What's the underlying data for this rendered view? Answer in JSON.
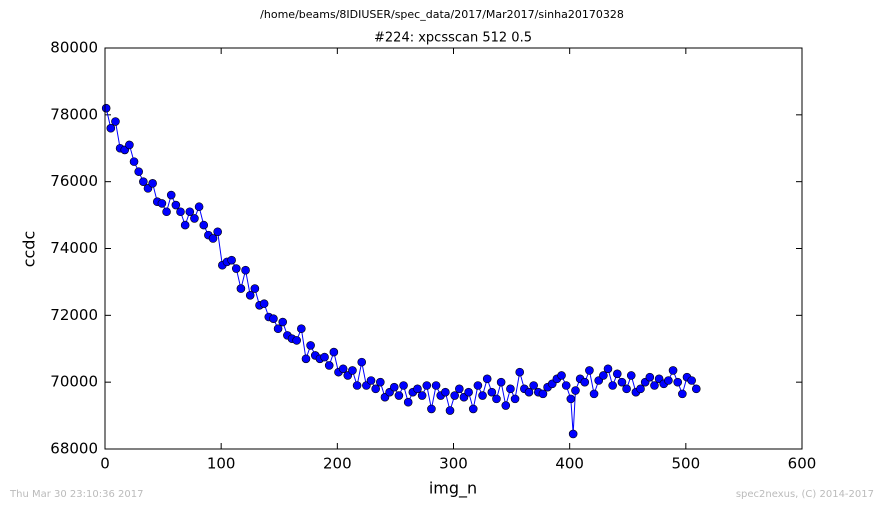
{
  "chart_data": {
    "type": "line",
    "suptitle": "/home/beams/8IDIUSER/spec_data/2017/Mar2017/sinha20170328",
    "title": "#224: xpcsscan 512 0.5",
    "xlabel": "img_n",
    "ylabel": "ccdc",
    "footer_left": "Thu Mar 30 23:10:36 2017",
    "footer_right": "spec2nexus, (C) 2014-2017",
    "x": [
      1,
      5,
      9,
      13,
      17,
      21,
      25,
      29,
      33,
      37,
      41,
      45,
      49,
      53,
      57,
      61,
      65,
      69,
      73,
      77,
      81,
      85,
      89,
      93,
      97,
      101,
      105,
      109,
      113,
      117,
      121,
      125,
      129,
      133,
      137,
      141,
      145,
      149,
      153,
      157,
      161,
      165,
      169,
      173,
      177,
      181,
      185,
      189,
      193,
      197,
      201,
      205,
      209,
      213,
      217,
      221,
      225,
      229,
      233,
      237,
      241,
      245,
      249,
      253,
      257,
      261,
      265,
      269,
      273,
      277,
      281,
      285,
      289,
      293,
      297,
      301,
      305,
      309,
      313,
      317,
      321,
      325,
      329,
      333,
      337,
      341,
      345,
      349,
      353,
      357,
      361,
      365,
      369,
      373,
      377,
      381,
      385,
      389,
      393,
      397,
      401,
      403,
      405,
      409,
      413,
      417,
      421,
      425,
      429,
      433,
      437,
      441,
      445,
      449,
      453,
      457,
      461,
      465,
      469,
      473,
      477,
      481,
      485,
      489,
      493,
      497,
      501,
      505,
      509
    ],
    "series": [
      {
        "name": "ccdc",
        "color": "#0000ff",
        "values": [
          78200,
          77600,
          77800,
          77000,
          76950,
          77100,
          76600,
          76300,
          76000,
          75800,
          75950,
          75400,
          75350,
          75100,
          75600,
          75300,
          75100,
          74700,
          75100,
          74900,
          75250,
          74700,
          74400,
          74300,
          74500,
          73500,
          73600,
          73650,
          73400,
          72800,
          73350,
          72600,
          72800,
          72300,
          72350,
          71950,
          71900,
          71600,
          71800,
          71400,
          71300,
          71250,
          71600,
          70700,
          71100,
          70800,
          70700,
          70750,
          70500,
          70900,
          70300,
          70400,
          70200,
          70350,
          69900,
          70600,
          69900,
          70050,
          69800,
          70000,
          69550,
          69700,
          69850,
          69600,
          69900,
          69400,
          69700,
          69800,
          69600,
          69900,
          69200,
          69900,
          69600,
          69700,
          69150,
          69600,
          69800,
          69550,
          69700,
          69200,
          69900,
          69600,
          70100,
          69700,
          69500,
          70000,
          69300,
          69800,
          69500,
          70300,
          69800,
          69700,
          69900,
          69700,
          69650,
          69850,
          69950,
          70100,
          70200,
          69900,
          69500,
          68450,
          69750,
          70100,
          70000,
          70350,
          69650,
          70050,
          70200,
          70400,
          69900,
          70250,
          70000,
          69800,
          70200,
          69700,
          69800,
          70000,
          70150,
          69900,
          70100,
          69950,
          70050,
          70350,
          70000,
          69650,
          70150,
          70050,
          69800
        ]
      }
    ],
    "xlim": [
      0,
      600
    ],
    "xticks": [
      0,
      100,
      200,
      300,
      400,
      500,
      600
    ],
    "ylim": [
      68000,
      80000
    ],
    "yticks": [
      68000,
      70000,
      72000,
      74000,
      76000,
      78000,
      80000
    ],
    "grid": false
  }
}
